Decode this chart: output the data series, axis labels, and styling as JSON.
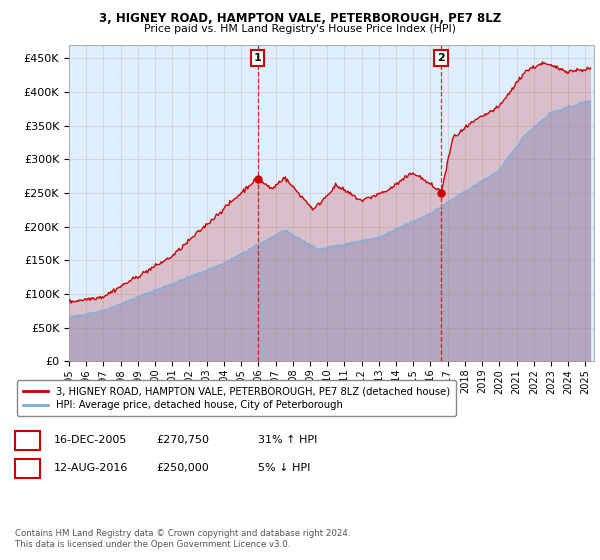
{
  "title1": "3, HIGNEY ROAD, HAMPTON VALE, PETERBOROUGH, PE7 8LZ",
  "title2": "Price paid vs. HM Land Registry's House Price Index (HPI)",
  "ylabel_ticks": [
    "£0",
    "£50K",
    "£100K",
    "£150K",
    "£200K",
    "£250K",
    "£300K",
    "£350K",
    "£400K",
    "£450K"
  ],
  "ytick_values": [
    0,
    50000,
    100000,
    150000,
    200000,
    250000,
    300000,
    350000,
    400000,
    450000
  ],
  "ylim": [
    0,
    470000
  ],
  "xlim_start": 1995.0,
  "xlim_end": 2025.5,
  "xtick_years": [
    1995,
    1996,
    1997,
    1998,
    1999,
    2000,
    2001,
    2002,
    2003,
    2004,
    2005,
    2006,
    2007,
    2008,
    2009,
    2010,
    2011,
    2012,
    2013,
    2014,
    2015,
    2016,
    2017,
    2018,
    2019,
    2020,
    2021,
    2022,
    2023,
    2024,
    2025
  ],
  "legend_line1": "3, HIGNEY ROAD, HAMPTON VALE, PETERBOROUGH, PE7 8LZ (detached house)",
  "legend_line2": "HPI: Average price, detached house, City of Peterborough",
  "legend_color1": "#cc0000",
  "legend_color2": "#7aaddc",
  "marker1_x": 2005.96,
  "marker1_y": 270750,
  "marker1_label": "1",
  "marker2_x": 2016.62,
  "marker2_y": 250000,
  "marker2_label": "2",
  "vline1_x": 2005.96,
  "vline2_x": 2016.62,
  "background_color": "#ffffff",
  "grid_color": "#cccccc",
  "plot_bg": "#ddeeff",
  "fill_blue_alpha": 0.45,
  "fill_red_alpha": 0.2,
  "ann1_date": "16-DEC-2005",
  "ann1_price": "£270,750",
  "ann1_hpi": "31% ↑ HPI",
  "ann2_date": "12-AUG-2016",
  "ann2_price": "£250,000",
  "ann2_hpi": "5% ↓ HPI",
  "footer": "Contains HM Land Registry data © Crown copyright and database right 2024.\nThis data is licensed under the Open Government Licence v3.0."
}
